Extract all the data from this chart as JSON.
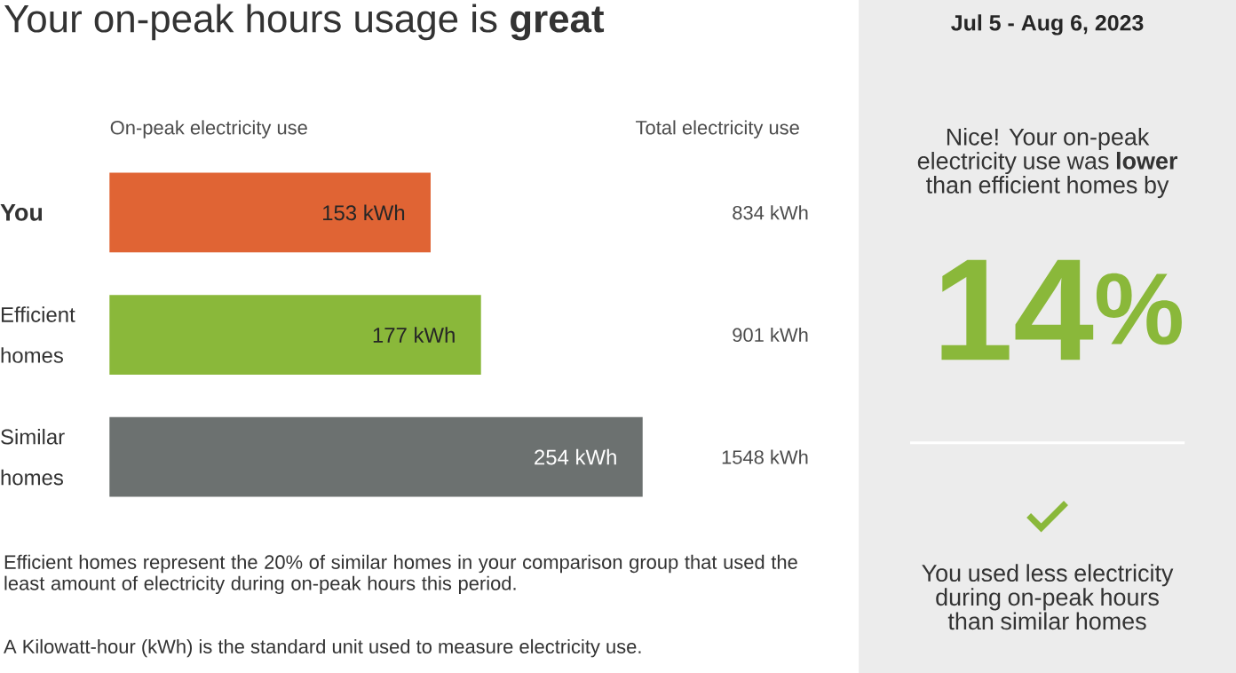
{
  "chart_data": [
    {
      "type": "bar",
      "orientation": "horizontal",
      "title": "Your on-peak hours usage is **great**",
      "xlabel": "On-peak electricity use",
      "categories": [
        "You",
        "Efficient homes",
        "Similar homes"
      ],
      "values": [
        153,
        177,
        254
      ],
      "colors": [
        "#e06434",
        "#8ab83a",
        "#6c7170"
      ],
      "value_labels": [
        "153 kWh",
        "177 kWh",
        "254 kWh"
      ],
      "annotations": [
        "Total electricity use",
        "834 kWh",
        "901 kWh",
        "1548 kWh",
        "Efficient homes represent the 20% of similar homes in your comparison group that used the least amount of electricity during on-peak hours this period.",
        "A Kilowatt-hour (kWh) is the standard unit used to measure electricity use."
      ]
    },
    {
      "type": "other",
      "title": "Jul 5 - Aug 6, 2023",
      "color": "#8ab83a",
      "annotations": [
        "Nice! Your on-peak electricity use was **lower** than efficient homes by",
        "14$^{%}$",
        "You used less electricity during on-peak hours than similar homes"
      ]
    }
  ]
}
